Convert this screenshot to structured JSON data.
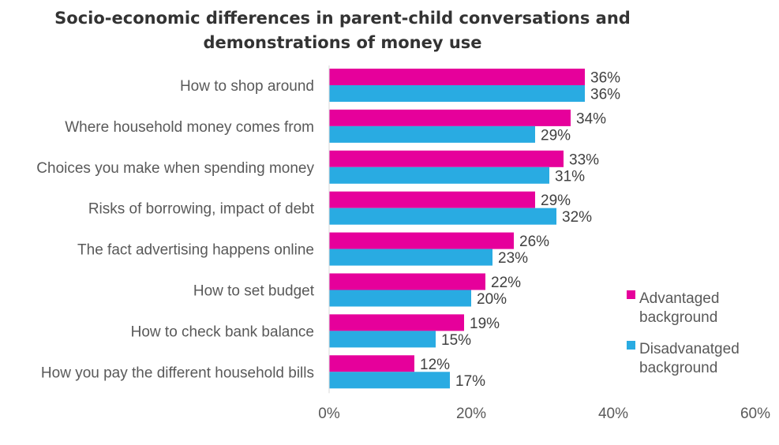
{
  "chart_data": {
    "type": "bar",
    "orientation": "horizontal",
    "title_lines": [
      "Socio-economic differences in parent-child conversations and",
      "demonstrations of money use"
    ],
    "categories": [
      "How to shop around",
      "Where household money comes from",
      "Choices you make when spending money",
      "Risks of borrowing, impact of debt",
      "The fact advertising happens online",
      "How to set budget",
      "How to check bank balance",
      "How you pay the different household bills"
    ],
    "series": [
      {
        "name_lines": [
          "Advantaged",
          "background"
        ],
        "color": "#e6009b",
        "values": [
          36,
          34,
          33,
          29,
          26,
          22,
          19,
          12
        ],
        "labels": [
          "36%",
          "34%",
          "33%",
          "29%",
          "26%",
          "22%",
          "19%",
          "12%"
        ]
      },
      {
        "name_lines": [
          "Disadvanatged",
          "background"
        ],
        "color": "#29abe2",
        "values": [
          36,
          29,
          31,
          32,
          23,
          20,
          15,
          17
        ],
        "labels": [
          "36%",
          "29%",
          "31%",
          "32%",
          "23%",
          "20%",
          "15%",
          "17%"
        ]
      }
    ],
    "xlim": [
      0,
      60
    ],
    "x_ticks": [
      0,
      20,
      40,
      60
    ],
    "x_tick_labels": [
      "0%",
      "20%",
      "40%",
      "60%"
    ],
    "grid": false,
    "legend_position": "right"
  }
}
